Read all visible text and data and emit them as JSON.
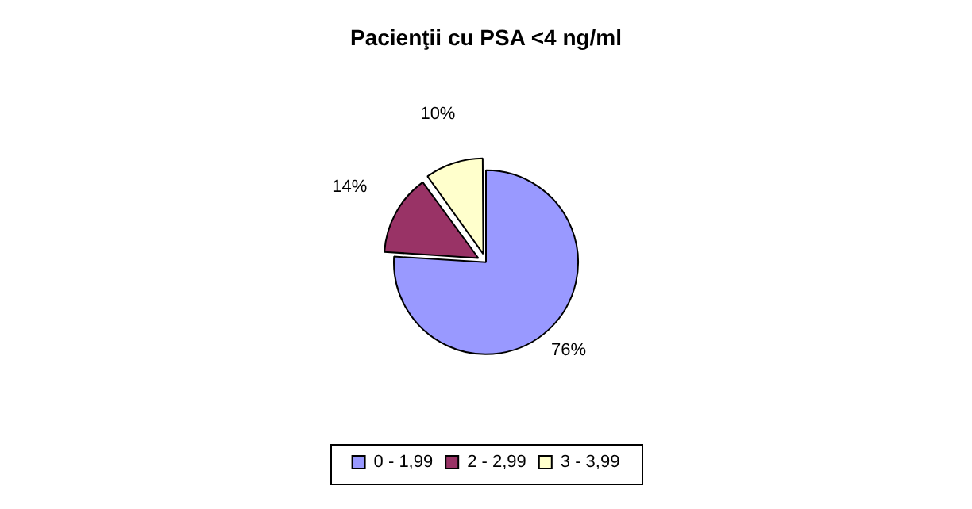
{
  "chart_data": {
    "type": "pie",
    "title": "Pacienţii cu PSA <4 ng/ml",
    "categories": [
      "0 - 1,99",
      "2 - 2,99",
      "3 - 3,99"
    ],
    "values": [
      76,
      14,
      10
    ],
    "colors": [
      "#9999ff",
      "#993366",
      "#ffffcc"
    ],
    "value_labels": [
      "76%",
      "14%",
      "10%"
    ],
    "legend": "bottom"
  }
}
